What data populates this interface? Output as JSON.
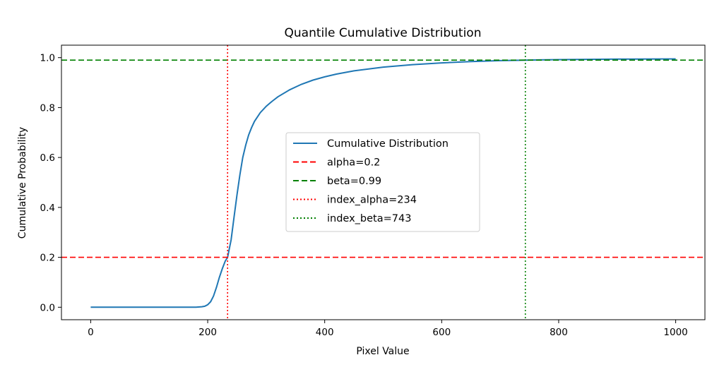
{
  "chart_data": {
    "type": "line",
    "title": "Quantile Cumulative Distribution",
    "xlabel": "Pixel Value",
    "ylabel": "Cumulative Probability",
    "xlim": [
      -50,
      1050
    ],
    "ylim": [
      -0.05,
      1.05
    ],
    "xticks": [
      0,
      200,
      400,
      600,
      800,
      1000
    ],
    "yticks": [
      0.0,
      0.2,
      0.4,
      0.6,
      0.8,
      1.0
    ],
    "xtick_labels": [
      "0",
      "200",
      "400",
      "600",
      "800",
      "1000"
    ],
    "ytick_labels": [
      "0.0",
      "0.2",
      "0.4",
      "0.6",
      "0.8",
      "1.0"
    ],
    "grid": false,
    "legend_position": "center",
    "series": [
      {
        "name": "Cumulative Distribution",
        "color": "#1f77b4",
        "style": "solid",
        "x": [
          0,
          100,
          180,
          190,
          195,
          200,
          205,
          210,
          215,
          220,
          225,
          230,
          234,
          240,
          245,
          250,
          255,
          260,
          265,
          270,
          275,
          280,
          290,
          300,
          310,
          320,
          340,
          360,
          380,
          400,
          420,
          450,
          500,
          550,
          600,
          650,
          700,
          743,
          800,
          900,
          1000
        ],
        "y": [
          0,
          0,
          0.0,
          0.002,
          0.004,
          0.01,
          0.022,
          0.045,
          0.08,
          0.12,
          0.155,
          0.185,
          0.2,
          0.27,
          0.36,
          0.45,
          0.53,
          0.6,
          0.65,
          0.69,
          0.72,
          0.745,
          0.78,
          0.805,
          0.825,
          0.843,
          0.871,
          0.893,
          0.91,
          0.923,
          0.934,
          0.947,
          0.962,
          0.972,
          0.979,
          0.984,
          0.988,
          0.99,
          0.992,
          0.994,
          0.995
        ]
      }
    ],
    "reference_lines": [
      {
        "name": "alpha=0.2",
        "orientation": "horizontal",
        "value": 0.2,
        "color": "#ff0000",
        "style": "dashed"
      },
      {
        "name": "beta=0.99",
        "orientation": "horizontal",
        "value": 0.99,
        "color": "#008000",
        "style": "dashed"
      },
      {
        "name": "index_alpha=234",
        "orientation": "vertical",
        "value": 234,
        "color": "#ff0000",
        "style": "dotted"
      },
      {
        "name": "index_beta=743",
        "orientation": "vertical",
        "value": 743,
        "color": "#008000",
        "style": "dotted"
      }
    ]
  }
}
